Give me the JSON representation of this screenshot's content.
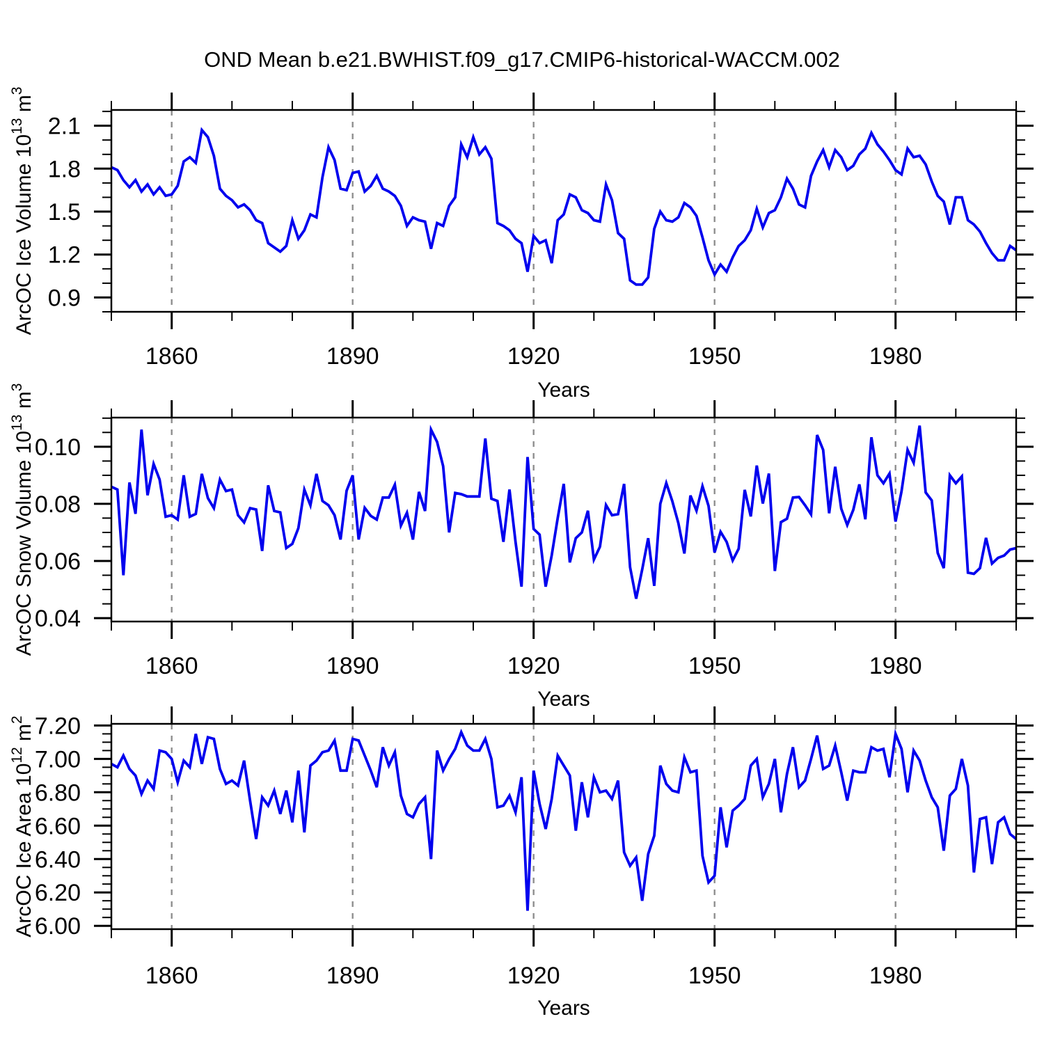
{
  "title": "OND Mean b.e21.BWHIST.f09_g17.CMIP6-historical-WACCM.002",
  "xlabel": "Years",
  "colors": {
    "series": "#0000ee",
    "grid": "#8f8f8f",
    "axis": "#000000",
    "background": "#ffffff"
  },
  "chart_data": [
    {
      "type": "line",
      "name": "arcoc-ice-volume",
      "ylabel": {
        "text": "ArcOC Ice Volume 10",
        "sup": "13",
        "unit": "m",
        "unit_sup": "3"
      },
      "xlabel": "Years",
      "xlim": [
        1850,
        2000
      ],
      "xticks": [
        1860,
        1890,
        1920,
        1950,
        1980
      ],
      "xtick_labels": [
        "1860",
        "1890",
        "1920",
        "1950",
        "1980"
      ],
      "xminor_step": 10,
      "ylim": [
        0.8,
        2.21
      ],
      "yticks": [
        0.9,
        1.2,
        1.5,
        1.8,
        2.1
      ],
      "ytick_labels": [
        "0.9",
        "1.2",
        "1.5",
        "1.8",
        "2.1"
      ],
      "yminor_step": 0.1,
      "grid_years": [
        1860,
        1890,
        1920,
        1950,
        1980
      ],
      "x_start": 1850,
      "x_step": 1,
      "values": [
        1.81,
        1.79,
        1.72,
        1.67,
        1.72,
        1.64,
        1.69,
        1.62,
        1.67,
        1.61,
        1.62,
        1.68,
        1.85,
        1.88,
        1.84,
        2.07,
        2.02,
        1.89,
        1.66,
        1.61,
        1.58,
        1.53,
        1.55,
        1.51,
        1.44,
        1.42,
        1.28,
        1.25,
        1.22,
        1.26,
        1.44,
        1.31,
        1.37,
        1.48,
        1.46,
        1.74,
        1.95,
        1.86,
        1.66,
        1.65,
        1.77,
        1.78,
        1.64,
        1.68,
        1.75,
        1.66,
        1.64,
        1.61,
        1.54,
        1.4,
        1.46,
        1.44,
        1.43,
        1.24,
        1.42,
        1.4,
        1.54,
        1.6,
        1.97,
        1.88,
        2.02,
        1.9,
        1.95,
        1.87,
        1.42,
        1.4,
        1.37,
        1.31,
        1.28,
        1.08,
        1.33,
        1.28,
        1.3,
        1.14,
        1.44,
        1.48,
        1.62,
        1.6,
        1.51,
        1.49,
        1.44,
        1.43,
        1.69,
        1.58,
        1.35,
        1.31,
        1.02,
        0.99,
        0.99,
        1.04,
        1.38,
        1.5,
        1.44,
        1.43,
        1.46,
        1.56,
        1.53,
        1.47,
        1.32,
        1.16,
        1.06,
        1.13,
        1.08,
        1.18,
        1.26,
        1.3,
        1.37,
        1.52,
        1.39,
        1.49,
        1.51,
        1.6,
        1.73,
        1.66,
        1.55,
        1.53,
        1.75,
        1.85,
        1.93,
        1.81,
        1.93,
        1.88,
        1.79,
        1.82,
        1.9,
        1.94,
        2.05,
        1.97,
        1.92,
        1.86,
        1.79,
        1.76,
        1.94,
        1.88,
        1.89,
        1.83,
        1.71,
        1.61,
        1.57,
        1.41,
        1.6,
        1.6,
        1.44,
        1.41,
        1.36,
        1.28,
        1.21,
        1.16,
        1.16,
        1.26,
        1.23
      ]
    },
    {
      "type": "line",
      "name": "arcoc-snow-volume",
      "ylabel": {
        "text": "ArcOC Snow Volume 10",
        "sup": "13",
        "unit": "m",
        "unit_sup": "3"
      },
      "xlabel": "Years",
      "xlim": [
        1850,
        2000
      ],
      "xticks": [
        1860,
        1890,
        1920,
        1950,
        1980
      ],
      "xtick_labels": [
        "1860",
        "1890",
        "1920",
        "1950",
        "1980"
      ],
      "xminor_step": 10,
      "ylim": [
        0.0388,
        0.1102
      ],
      "yticks": [
        0.04,
        0.06,
        0.08,
        0.1
      ],
      "ytick_labels": [
        "0.04",
        "0.06",
        "0.08",
        "0.10"
      ],
      "yminor_step": 0.005,
      "grid_years": [
        1860,
        1890,
        1920,
        1950,
        1980
      ],
      "x_start": 1850,
      "x_step": 1,
      "values": [
        0.086,
        0.085,
        0.055,
        0.0875,
        0.0765,
        0.106,
        0.083,
        0.094,
        0.0885,
        0.0755,
        0.076,
        0.0745,
        0.09,
        0.0755,
        0.0765,
        0.0905,
        0.082,
        0.0785,
        0.0885,
        0.0845,
        0.085,
        0.076,
        0.0735,
        0.0785,
        0.078,
        0.0635,
        0.0865,
        0.0775,
        0.077,
        0.0645,
        0.066,
        0.0715,
        0.085,
        0.0795,
        0.0905,
        0.081,
        0.0795,
        0.076,
        0.0675,
        0.0846,
        0.09,
        0.0675,
        0.0786,
        0.0758,
        0.0745,
        0.0822,
        0.0822,
        0.0867,
        0.0724,
        0.0769,
        0.0675,
        0.0842,
        0.0775,
        0.106,
        0.1017,
        0.0932,
        0.07,
        0.0838,
        0.0834,
        0.0826,
        0.0826,
        0.0826,
        0.1029,
        0.0818,
        0.081,
        0.0667,
        0.085,
        0.0667,
        0.051,
        0.0964,
        0.0712,
        0.0692,
        0.051,
        0.062,
        0.075,
        0.087,
        0.0595,
        0.068,
        0.07,
        0.0776,
        0.0605,
        0.065,
        0.0796,
        0.076,
        0.0764,
        0.087,
        0.0578,
        0.0468,
        0.057,
        0.068,
        0.0513,
        0.08,
        0.0873,
        0.0809,
        0.0732,
        0.0626,
        0.0829,
        0.0776,
        0.0862,
        0.0793,
        0.063,
        0.0702,
        0.0667,
        0.0602,
        0.0643,
        0.0849,
        0.0756,
        0.0934,
        0.0801,
        0.0906,
        0.0565,
        0.0736,
        0.0748,
        0.0822,
        0.0824,
        0.0795,
        0.0763,
        0.1041,
        0.0989,
        0.0767,
        0.093,
        0.0783,
        0.0726,
        0.0779,
        0.0868,
        0.0746,
        0.1033,
        0.09,
        0.0872,
        0.0906,
        0.0738,
        0.0844,
        0.0989,
        0.0944,
        0.1074,
        0.084,
        0.0812,
        0.0628,
        0.0575,
        0.09,
        0.0872,
        0.0896,
        0.0559,
        0.0555,
        0.0575,
        0.0681,
        0.0591,
        0.0611,
        0.0619,
        0.064,
        0.0645
      ]
    },
    {
      "type": "line",
      "name": "arcoc-ice-area",
      "ylabel": {
        "text": "ArcOC Ice Area 10",
        "sup": "12",
        "unit": "m",
        "unit_sup": "2"
      },
      "xlabel": "Years",
      "xlim": [
        1850,
        2000
      ],
      "xticks": [
        1860,
        1890,
        1920,
        1950,
        1980
      ],
      "xtick_labels": [
        "1860",
        "1890",
        "1920",
        "1950",
        "1980"
      ],
      "xminor_step": 10,
      "ylim": [
        5.98,
        7.21
      ],
      "yticks": [
        6.0,
        6.2,
        6.4,
        6.6,
        6.8,
        7.0,
        7.2
      ],
      "ytick_labels": [
        "6.00",
        "6.20",
        "6.40",
        "6.60",
        "6.80",
        "7.00",
        "7.20"
      ],
      "yminor_step": 0.05,
      "grid_years": [
        1860,
        1890,
        1920,
        1950,
        1980
      ],
      "x_start": 1850,
      "x_step": 1,
      "values": [
        6.97,
        6.95,
        7.02,
        6.94,
        6.9,
        6.79,
        6.87,
        6.82,
        7.05,
        7.04,
        7.0,
        6.86,
        6.99,
        6.95,
        7.15,
        6.97,
        7.13,
        7.12,
        6.94,
        6.85,
        6.87,
        6.84,
        6.99,
        6.75,
        6.52,
        6.77,
        6.72,
        6.81,
        6.67,
        6.81,
        6.62,
        6.93,
        6.56,
        6.96,
        6.99,
        7.04,
        7.05,
        7.11,
        6.93,
        6.93,
        7.12,
        7.11,
        7.02,
        6.93,
        6.83,
        7.07,
        6.96,
        7.04,
        6.78,
        6.67,
        6.65,
        6.73,
        6.77,
        6.4,
        7.05,
        6.93,
        7.0,
        7.06,
        7.16,
        7.08,
        7.05,
        7.05,
        7.12,
        7.0,
        6.71,
        6.72,
        6.78,
        6.68,
        6.89,
        6.09,
        6.93,
        6.73,
        6.58,
        6.76,
        7.02,
        6.96,
        6.9,
        6.57,
        6.86,
        6.65,
        6.89,
        6.8,
        6.81,
        6.76,
        6.87,
        6.44,
        6.36,
        6.41,
        6.15,
        6.43,
        6.54,
        6.96,
        6.85,
        6.81,
        6.8,
        7.01,
        6.92,
        6.93,
        6.42,
        6.26,
        6.3,
        6.71,
        6.47,
        6.69,
        6.72,
        6.76,
        6.96,
        7.0,
        6.77,
        6.85,
        7.0,
        6.68,
        6.91,
        7.07,
        6.83,
        6.87,
        7.0,
        7.14,
        6.94,
        6.96,
        7.08,
        6.92,
        6.75,
        6.93,
        6.92,
        6.92,
        7.07,
        7.05,
        7.06,
        6.89,
        7.15,
        7.06,
        6.8,
        7.05,
        6.99,
        6.87,
        6.77,
        6.71,
        6.45,
        6.78,
        6.82,
        7.0,
        6.84,
        6.32,
        6.64,
        6.65,
        6.37,
        6.62,
        6.65,
        6.55,
        6.52
      ]
    }
  ]
}
